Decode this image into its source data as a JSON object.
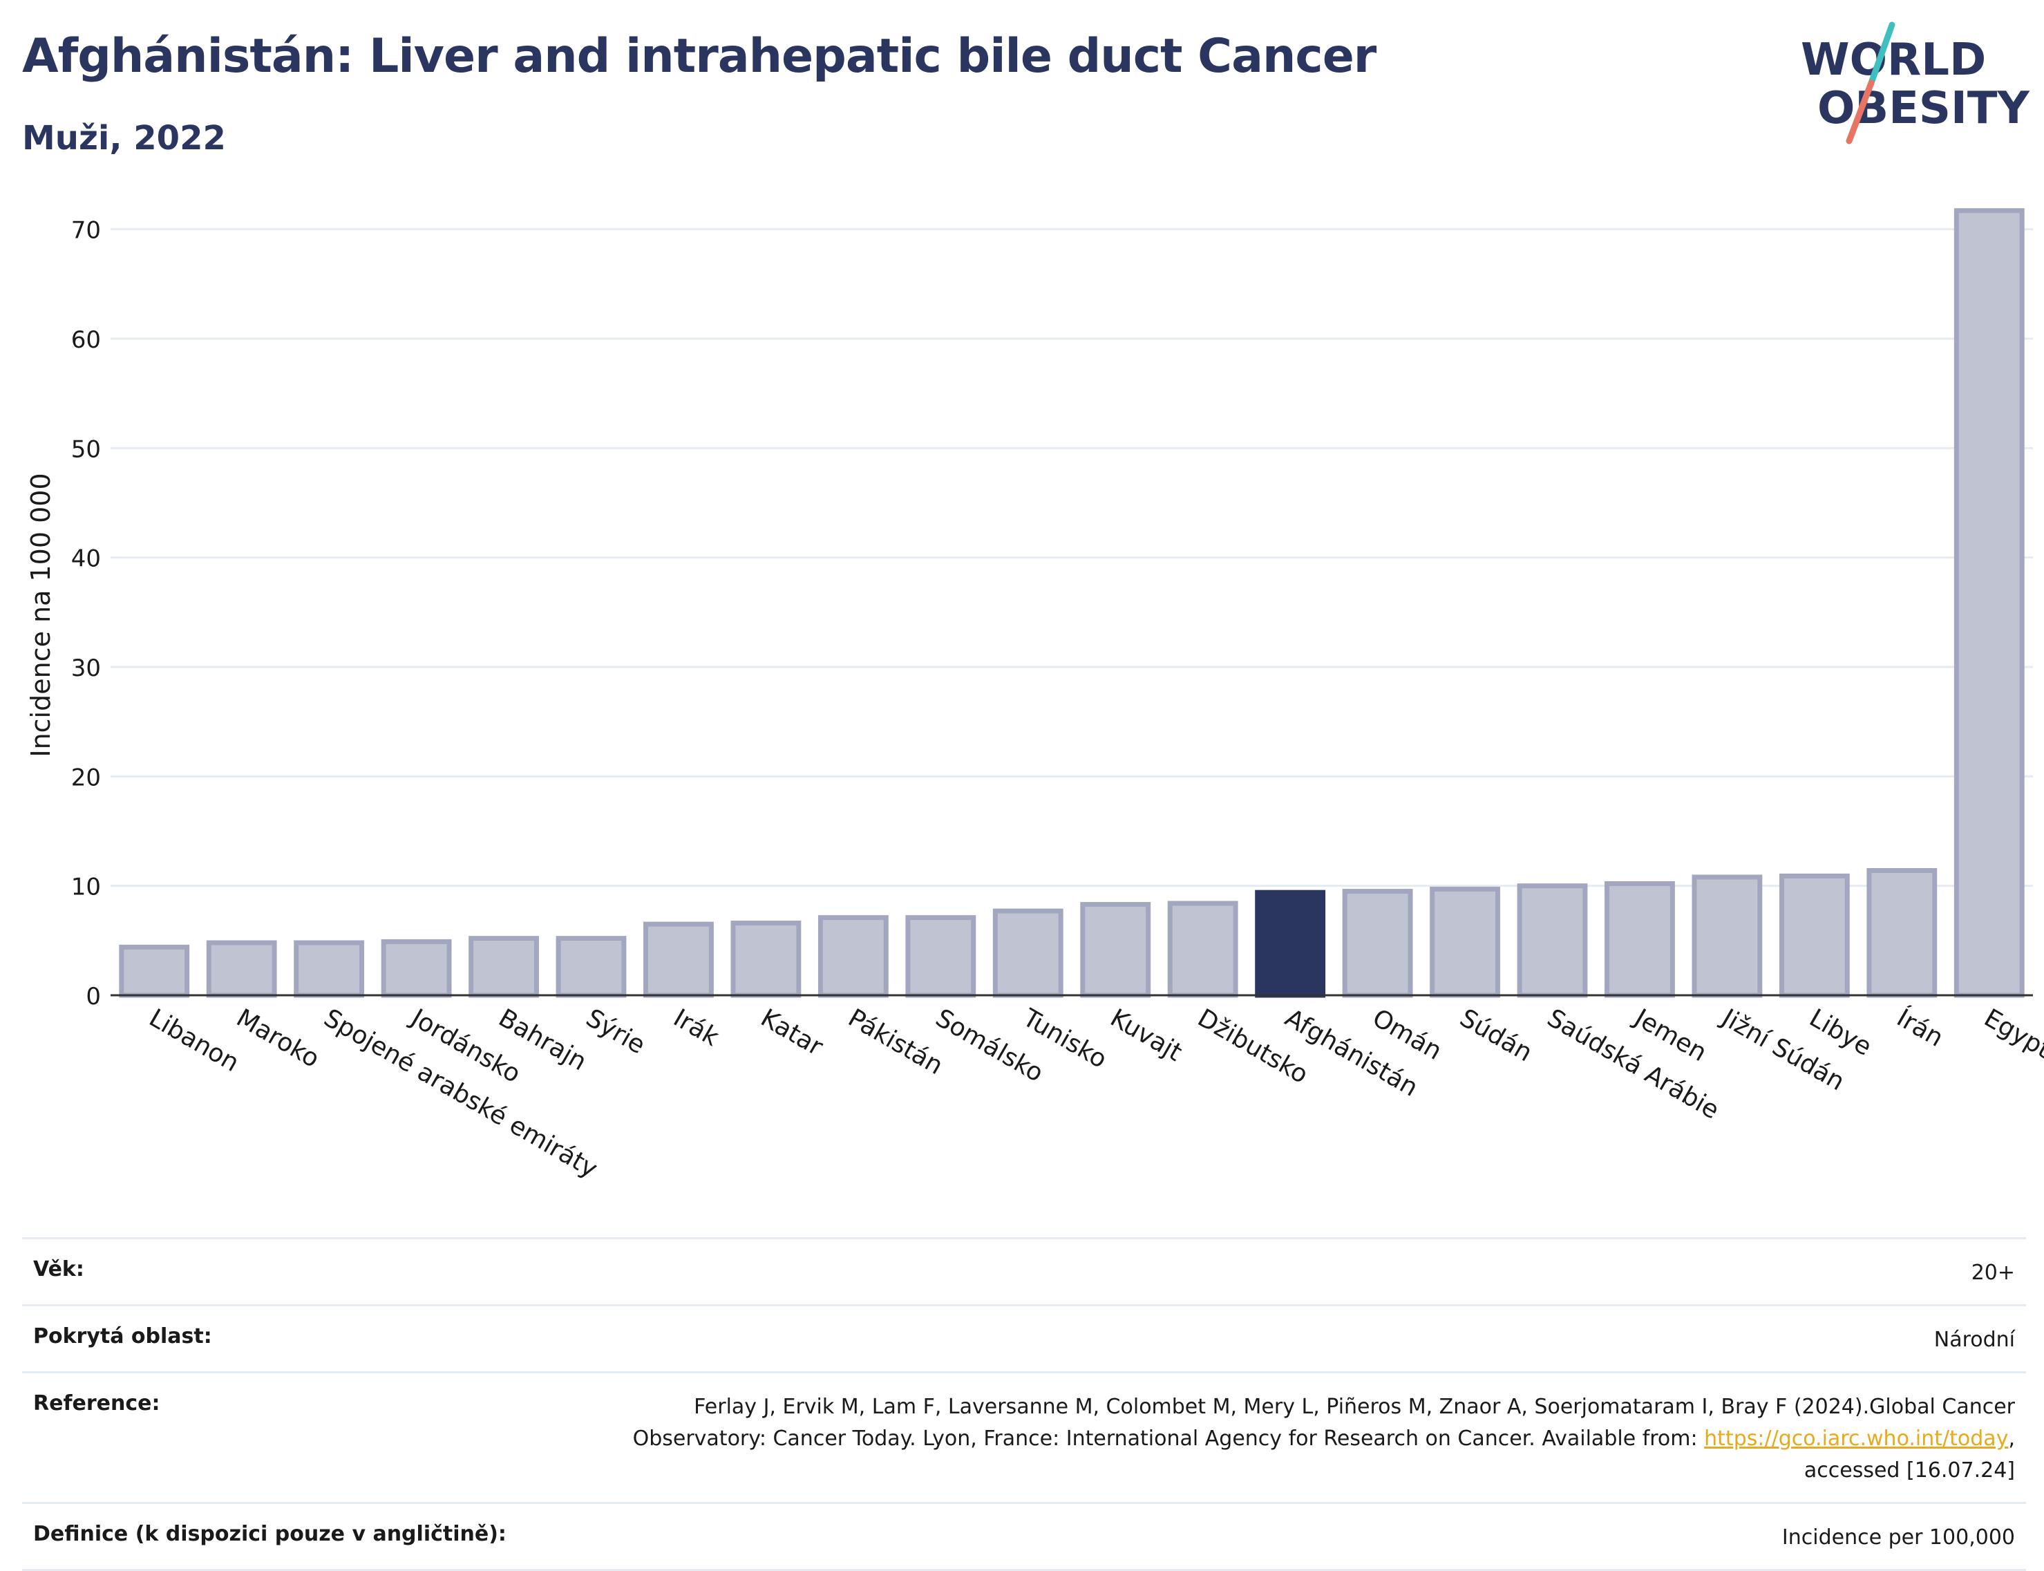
{
  "header": {
    "title": "Afghánistán: Liver and intrahepatic bile duct Cancer",
    "subtitle": "Muži, 2022",
    "logo_line1": "WORLD",
    "logo_line2": "OBESITY"
  },
  "chart_data": {
    "type": "bar",
    "ylabel": "Incidence na 100 000",
    "xlabel": "",
    "ylim": [
      0,
      72
    ],
    "yticks": [
      0,
      10,
      20,
      30,
      40,
      50,
      60,
      70
    ],
    "grid": true,
    "highlight": "Afghánistán",
    "categories": [
      "Libanon",
      "Maroko",
      "Spojené arabské emiráty",
      "Jordánsko",
      "Bahrajn",
      "Sýrie",
      "Irák",
      "Katar",
      "Pákistán",
      "Somálsko",
      "Tunisko",
      "Kuvajt",
      "Džibutsko",
      "Afghánistán",
      "Omán",
      "Súdán",
      "Saúdská Arábie",
      "Jemen",
      "Jižní Súdán",
      "Libye",
      "Írán",
      "Egypt"
    ],
    "values": [
      4.4,
      4.8,
      4.8,
      4.9,
      5.2,
      5.2,
      6.5,
      6.6,
      7.1,
      7.1,
      7.7,
      8.3,
      8.4,
      9.4,
      9.5,
      9.7,
      10.0,
      10.2,
      10.8,
      10.9,
      11.4,
      71.7
    ]
  },
  "colors": {
    "bar": "#c0c3d2",
    "bar_outline": "#a2a7bf",
    "highlight": "#2a3560",
    "title": "#2a3560",
    "grid": "#e6ebf1",
    "link": "#e8a91a",
    "logo_teal": "#3fbfbf",
    "logo_coral": "#e87464"
  },
  "info": {
    "age_label": "Věk:",
    "age_value": "20+",
    "area_label": "Pokrytá oblast:",
    "area_value": "Národní",
    "ref_label": "Reference:",
    "ref_text_1": "Ferlay J, Ervik M, Lam F, Laversanne M, Colombet M, Mery L, Piñeros M, Znaor A, Soerjomataram I, Bray F (2024).Global Cancer",
    "ref_text_2": "Observatory: Cancer Today. Lyon, France: International Agency for Research on Cancer. Available from: ",
    "ref_link": "https://gco.iarc.who.int/today",
    "ref_text_3": ",",
    "ref_text_4": "accessed [16.07.24]",
    "def_label": "Definice (k dispozici pouze v angličtině):",
    "def_value": "Incidence per 100,000"
  }
}
